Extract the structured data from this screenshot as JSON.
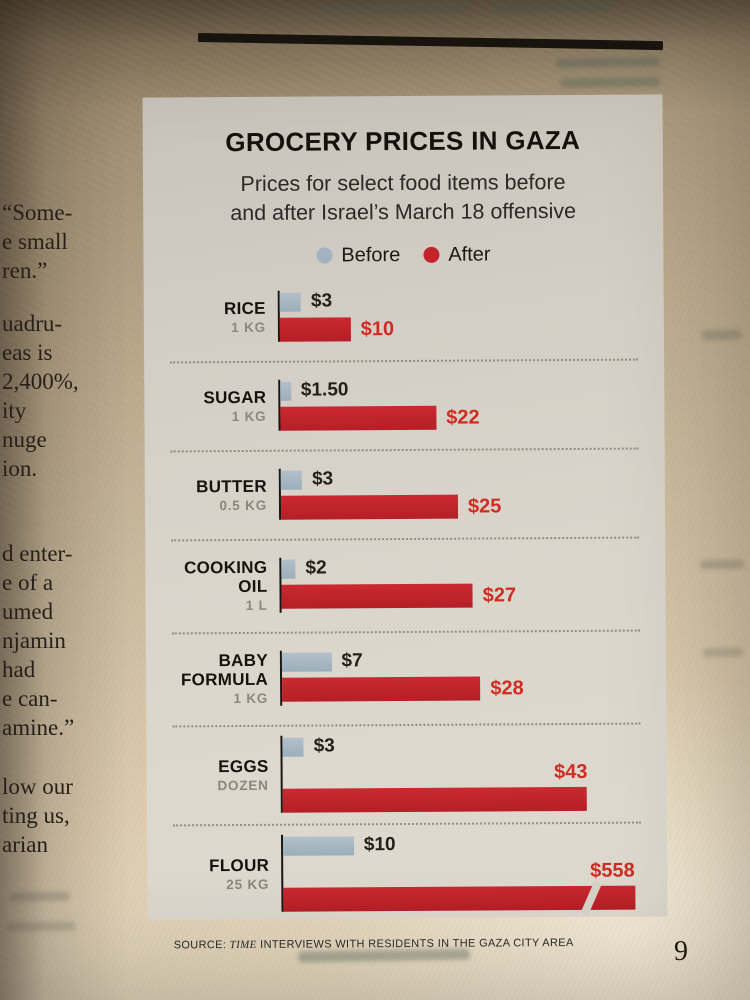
{
  "page": {
    "number": "9",
    "left_column_paragraphs": [
      [
        "“Some-",
        "e small",
        "ren.”"
      ],
      [
        "uadru-",
        "eas is",
        "2,400%,",
        "ity",
        "nuge",
        "ion."
      ],
      [
        "d enter-",
        "e of a",
        "umed",
        "njamin",
        "had",
        "e can-",
        "amine.”"
      ],
      [
        "low our",
        "ting us,",
        "arian"
      ]
    ]
  },
  "chart": {
    "title": "GROCERY PRICES IN GAZA",
    "subtitle_lines": [
      "Prices for select food items before",
      "and after Israel’s March 18 offensive"
    ],
    "legend": {
      "before": "Before",
      "after": "After"
    },
    "colors": {
      "before_bar": "#a3b2c0",
      "after_bar": "#c4232a",
      "after_value": "#d02c22"
    },
    "source": {
      "prefix": "SOURCE: ",
      "publication": "TIME",
      "rest": " INTERVIEWS WITH RESIDENTS IN THE GAZA CITY AREA"
    },
    "rows": [
      {
        "label1": "RICE",
        "label2": "",
        "unit": "1 KG",
        "before_label": "$3",
        "after_label": "$10",
        "before_value": 3,
        "after_value": 10,
        "broken": false
      },
      {
        "label1": "SUGAR",
        "label2": "",
        "unit": "1 KG",
        "before_label": "$1.50",
        "after_label": "$22",
        "before_value": 1.5,
        "after_value": 22,
        "broken": false
      },
      {
        "label1": "BUTTER",
        "label2": "",
        "unit": "0.5 KG",
        "before_label": "$3",
        "after_label": "$25",
        "before_value": 3,
        "after_value": 25,
        "broken": false
      },
      {
        "label1": "COOKING",
        "label2": "OIL",
        "unit": "1 L",
        "before_label": "$2",
        "after_label": "$27",
        "before_value": 2,
        "after_value": 27,
        "broken": false
      },
      {
        "label1": "BABY",
        "label2": "FORMULA",
        "unit": "1 KG",
        "before_label": "$7",
        "after_label": "$28",
        "before_value": 7,
        "after_value": 28,
        "broken": false
      },
      {
        "label1": "EGGS",
        "label2": "",
        "unit": "DOZEN",
        "before_label": "$3",
        "after_label": "$43",
        "before_value": 3,
        "after_value": 43,
        "broken": false
      },
      {
        "label1": "FLOUR",
        "label2": "",
        "unit": "25 KG",
        "before_label": "$10",
        "after_label": "$558",
        "before_value": 10,
        "after_value": 558,
        "broken": true
      }
    ]
  },
  "chart_data": {
    "type": "bar",
    "orientation": "horizontal",
    "title": "GROCERY PRICES IN GAZA",
    "subtitle": "Prices for select food items before and after Israel’s March 18 offensive",
    "unit": "USD",
    "categories": [
      "Rice (1 kg)",
      "Sugar (1 kg)",
      "Butter (0.5 kg)",
      "Cooking oil (1 L)",
      "Baby formula (1 kg)",
      "Eggs (dozen)",
      "Flour (25 kg)"
    ],
    "series": [
      {
        "name": "Before",
        "values": [
          3,
          1.5,
          3,
          2,
          7,
          3,
          10
        ]
      },
      {
        "name": "After",
        "values": [
          10,
          22,
          25,
          27,
          28,
          43,
          558
        ]
      }
    ],
    "legend_position": "top",
    "grid": false,
    "axis_break": {
      "series": "After",
      "category": "Flour (25 kg)",
      "note": "bar truncated with diagonal break mark"
    },
    "source": "SOURCE: TIME INTERVIEWS WITH RESIDENTS IN THE GAZA CITY AREA"
  }
}
